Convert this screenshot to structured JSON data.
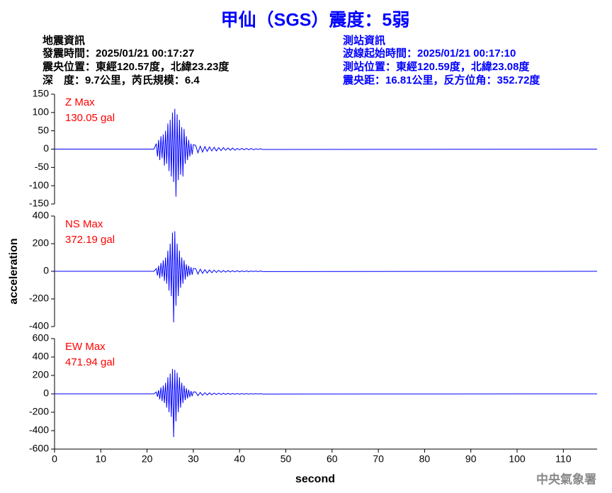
{
  "header": {
    "title": "甲仙（SGS）震度：5弱",
    "left": [
      "地震資訊",
      "發震時間：2025/01/21 00:17:27",
      "震央位置：東經120.57度，北緯23.23度",
      "深　度：9.7公里，芮氏規模：6.4"
    ],
    "right": [
      "測站資訊",
      "波線起始時間：2025/01/21 00:17:10",
      "測站位置：東經120.59度，北緯23.08度",
      "震央距：16.81公里，反方位角：352.72度"
    ]
  },
  "footer": "中央氣象署",
  "chart_data": [
    {
      "type": "line",
      "annotation": [
        "Z Max",
        "130.05 gal"
      ],
      "color": "#0000ff",
      "annotation_color": "#ff0000",
      "x": [
        0,
        21.5,
        22,
        22.25,
        22.5,
        22.75,
        23,
        23.25,
        23.5,
        23.75,
        24,
        24.25,
        24.5,
        24.75,
        25,
        25.25,
        25.5,
        25.75,
        26,
        26.25,
        26.5,
        26.75,
        27,
        27.25,
        27.5,
        27.75,
        28,
        28.25,
        28.5,
        28.75,
        29,
        29.25,
        29.5,
        29.75,
        30,
        30.5,
        31,
        31.5,
        32,
        32.5,
        33,
        33.5,
        34,
        34.5,
        35,
        35.5,
        36,
        36.5,
        37,
        37.5,
        38,
        38.5,
        39,
        39.5,
        40,
        40.5,
        41,
        41.5,
        42,
        42.5,
        43,
        43.5,
        44,
        44.5,
        45,
        117.3
      ],
      "values": [
        0,
        0,
        15,
        -20,
        25,
        -30,
        35,
        -25,
        40,
        -45,
        50,
        -40,
        70,
        -60,
        80,
        -75,
        100,
        -90,
        110,
        -130,
        95,
        -85,
        80,
        -70,
        60,
        -75,
        55,
        -40,
        35,
        -30,
        25,
        -20,
        15,
        -15,
        12,
        10,
        -10,
        8,
        -8,
        7,
        -6,
        6,
        -5,
        5,
        -5,
        4,
        -4,
        4,
        -3,
        3,
        -3,
        3,
        -3,
        2,
        -2,
        2,
        -2,
        2,
        -2,
        2,
        -2,
        1,
        -1,
        1,
        -1,
        0
      ],
      "xlim": [
        0,
        117.3
      ],
      "ylim": [
        -150,
        150
      ],
      "yticks": [
        150,
        100,
        50,
        0,
        -50,
        -100,
        -150
      ]
    },
    {
      "type": "line",
      "annotation": [
        "NS Max",
        "372.19 gal"
      ],
      "color": "#0000ff",
      "annotation_color": "#ff0000",
      "ylabel": "acceleration",
      "x": [
        0,
        21.5,
        22,
        22.25,
        22.5,
        22.75,
        23,
        23.25,
        23.5,
        23.75,
        24,
        24.25,
        24.5,
        24.75,
        25,
        25.25,
        25.5,
        25.75,
        26,
        26.25,
        26.5,
        26.75,
        27,
        27.25,
        27.5,
        27.75,
        28,
        28.25,
        28.5,
        28.75,
        29,
        29.25,
        29.5,
        29.75,
        30,
        30.5,
        31,
        31.5,
        32,
        32.5,
        33,
        33.5,
        34,
        34.5,
        35,
        35.5,
        36,
        36.5,
        37,
        37.5,
        38,
        38.5,
        39,
        39.5,
        40,
        40.5,
        41,
        41.5,
        42,
        42.5,
        43,
        43.5,
        44,
        44.5,
        45,
        117.3
      ],
      "values": [
        0,
        0,
        20,
        -30,
        40,
        -50,
        60,
        -40,
        80,
        -70,
        100,
        -90,
        150,
        -140,
        200,
        -180,
        280,
        -370,
        290,
        -250,
        200,
        -180,
        150,
        -120,
        100,
        -90,
        80,
        -60,
        50,
        -40,
        40,
        -30,
        30,
        -25,
        20,
        20,
        -20,
        15,
        -15,
        12,
        -12,
        10,
        -10,
        8,
        -8,
        7,
        -7,
        6,
        -6,
        5,
        -5,
        4,
        -4,
        4,
        -4,
        3,
        -3,
        3,
        -3,
        2,
        -2,
        2,
        -2,
        2,
        -2,
        0
      ],
      "xlim": [
        0,
        117.3
      ],
      "ylim": [
        -400,
        400
      ],
      "yticks": [
        400,
        200,
        0,
        -200,
        -400
      ]
    },
    {
      "type": "line",
      "annotation": [
        "EW Max",
        "471.94 gal"
      ],
      "color": "#0000ff",
      "annotation_color": "#ff0000",
      "xlabel": "second",
      "x": [
        0,
        21.5,
        22,
        22.25,
        22.5,
        22.75,
        23,
        23.25,
        23.5,
        23.75,
        24,
        24.25,
        24.5,
        24.75,
        25,
        25.25,
        25.5,
        25.75,
        26,
        26.25,
        26.5,
        26.75,
        27,
        27.25,
        27.5,
        27.75,
        28,
        28.25,
        28.5,
        28.75,
        29,
        29.25,
        29.5,
        29.75,
        30,
        30.5,
        31,
        31.5,
        32,
        32.5,
        33,
        33.5,
        34,
        34.5,
        35,
        35.5,
        36,
        36.5,
        37,
        37.5,
        38,
        38.5,
        39,
        39.5,
        40,
        40.5,
        41,
        41.5,
        42,
        42.5,
        43,
        43.5,
        44,
        44.5,
        45,
        117.3
      ],
      "values": [
        0,
        0,
        20,
        -30,
        40,
        -60,
        70,
        -80,
        90,
        -100,
        120,
        -150,
        180,
        -200,
        220,
        -250,
        270,
        -470,
        260,
        -300,
        230,
        -200,
        180,
        -150,
        120,
        -100,
        90,
        -70,
        60,
        -50,
        45,
        -35,
        30,
        -25,
        20,
        20,
        -20,
        15,
        -15,
        12,
        -12,
        10,
        -10,
        8,
        -8,
        7,
        -7,
        6,
        -6,
        5,
        -5,
        4,
        -4,
        4,
        -4,
        3,
        -3,
        3,
        -3,
        2,
        -2,
        2,
        -2,
        2,
        -2,
        0
      ],
      "xlim": [
        0,
        117.3
      ],
      "ylim": [
        -600,
        600
      ],
      "yticks": [
        600,
        400,
        200,
        0,
        -200,
        -400,
        -600
      ],
      "xticks": [
        0,
        10,
        20,
        30,
        40,
        50,
        60,
        70,
        80,
        90,
        100,
        110
      ]
    }
  ]
}
